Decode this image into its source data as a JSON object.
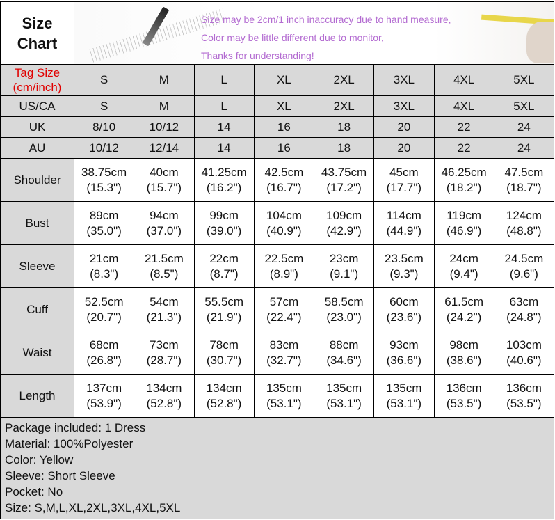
{
  "header": {
    "title_line1": "Size",
    "title_line2": "Chart",
    "notes": [
      "Size may be 2cm/1 inch inaccuracy due to hand measure,",
      "Color may be little different due to monitor,",
      "Thanks for understanding!"
    ]
  },
  "tag_row": {
    "label_line1": "Tag Size",
    "label_line2": "(cm/inch)",
    "values": [
      "S",
      "M",
      "L",
      "XL",
      "2XL",
      "3XL",
      "4XL",
      "5XL"
    ]
  },
  "size_rows": [
    {
      "label": "US/CA",
      "values": [
        "S",
        "M",
        "L",
        "XL",
        "2XL",
        "3XL",
        "4XL",
        "5XL"
      ]
    },
    {
      "label": "UK",
      "values": [
        "8/10",
        "10/12",
        "14",
        "16",
        "18",
        "20",
        "22",
        "24"
      ]
    },
    {
      "label": "AU",
      "values": [
        "10/12",
        "12/14",
        "14",
        "16",
        "18",
        "20",
        "22",
        "24"
      ]
    }
  ],
  "measure_rows": [
    {
      "label": "Shoulder",
      "cm": [
        "38.75cm",
        "40cm",
        "41.25cm",
        "42.5cm",
        "43.75cm",
        "45cm",
        "46.25cm",
        "47.5cm"
      ],
      "inch": [
        "(15.3\")",
        "(15.7\")",
        "(16.2\")",
        "(16.7\")",
        "(17.2\")",
        "(17.7\")",
        "(18.2\")",
        "(18.7\")"
      ]
    },
    {
      "label": "Bust",
      "cm": [
        "89cm",
        "94cm",
        "99cm",
        "104cm",
        "109cm",
        "114cm",
        "119cm",
        "124cm"
      ],
      "inch": [
        "(35.0\")",
        "(37.0\")",
        "(39.0\")",
        "(40.9\")",
        "(42.9\")",
        "(44.9\")",
        "(46.9\")",
        "(48.8\")"
      ]
    },
    {
      "label": "Sleeve",
      "cm": [
        "21cm",
        "21.5cm",
        "22cm",
        "22.5cm",
        "23cm",
        "23.5cm",
        "24cm",
        "24.5cm"
      ],
      "inch": [
        "(8.3\")",
        "(8.5\")",
        "(8.7\")",
        "(8.9\")",
        "(9.1\")",
        "(9.3\")",
        "(9.4\")",
        "(9.6\")"
      ]
    },
    {
      "label": "Cuff",
      "cm": [
        "52.5cm",
        "54cm",
        "55.5cm",
        "57cm",
        "58.5cm",
        "60cm",
        "61.5cm",
        "63cm"
      ],
      "inch": [
        "(20.7\")",
        "(21.3\")",
        "(21.9\")",
        "(22.4\")",
        "(23.0\")",
        "(23.6\")",
        "(24.2\")",
        "(24.8\")"
      ]
    },
    {
      "label": "Waist",
      "cm": [
        "68cm",
        "73cm",
        "78cm",
        "83cm",
        "88cm",
        "93cm",
        "98cm",
        "103cm"
      ],
      "inch": [
        "(26.8\")",
        "(28.7\")",
        "(30.7\")",
        "(32.7\")",
        "(34.6\")",
        "(36.6\")",
        "(38.6\")",
        "(40.6\")"
      ]
    },
    {
      "label": "Length",
      "cm": [
        "137cm",
        "134cm",
        "134cm",
        "135cm",
        "135cm",
        "135cm",
        "136cm",
        "136cm"
      ],
      "inch": [
        "(53.9\")",
        "(52.8\")",
        "(52.8\")",
        "(53.1\")",
        "(53.1\")",
        "(53.1\")",
        "(53.5\")",
        "(53.5\")"
      ]
    }
  ],
  "footer": [
    "Package included: 1 Dress",
    "Material: 100%Polyester",
    "Color: Yellow",
    "Sleeve: Short Sleeve",
    "Pocket: No",
    "Size: S,M,L,XL,2XL,3XL,4XL,5XL"
  ],
  "colors": {
    "tag_label": "#e00000",
    "notes": "#b36bd1",
    "gray_fill": "#d9d9d9"
  }
}
